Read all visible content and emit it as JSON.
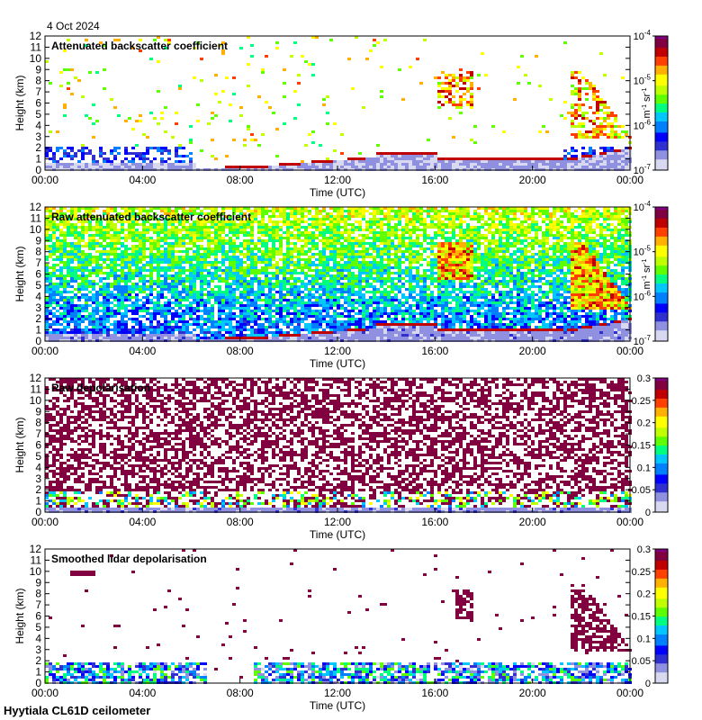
{
  "date_label": "4 Oct 2024",
  "footer_label": "Hyytiala CL61D ceilometer",
  "chart_data": [
    {
      "type": "heatmap",
      "title": "Attenuated backscatter coefficient",
      "xlabel": "Time (UTC)",
      "ylabel": "Height (km)",
      "xticks": [
        "00:00",
        "04:00",
        "08:00",
        "12:00",
        "16:00",
        "20:00",
        "00:00"
      ],
      "yticks": [
        "0",
        "1",
        "2",
        "3",
        "4",
        "5",
        "6",
        "7",
        "8",
        "9",
        "10",
        "11",
        "12"
      ],
      "ylim": [
        0,
        12
      ],
      "xlim_hours": [
        0,
        24
      ],
      "colorbar": {
        "scale": "log",
        "ticks": [
          "10-7",
          "10-6",
          "10-5",
          "10-4"
        ],
        "unit": "m-1 sr-1"
      },
      "pattern": "clean"
    },
    {
      "type": "heatmap",
      "title": "Raw attenuated backscatter coefficient",
      "xlabel": "Time (UTC)",
      "ylabel": "Height (km)",
      "xticks": [
        "00:00",
        "04:00",
        "08:00",
        "12:00",
        "16:00",
        "20:00",
        "00:00"
      ],
      "yticks": [
        "0",
        "1",
        "2",
        "3",
        "4",
        "5",
        "6",
        "7",
        "8",
        "9",
        "10",
        "11",
        "12"
      ],
      "ylim": [
        0,
        12
      ],
      "xlim_hours": [
        0,
        24
      ],
      "colorbar": {
        "scale": "log",
        "ticks": [
          "10-7",
          "10-6",
          "10-5",
          "10-4"
        ],
        "unit": "m-1 sr-1"
      },
      "pattern": "raw"
    },
    {
      "type": "heatmap",
      "title": "Raw depolarisation",
      "xlabel": "Time (UTC)",
      "ylabel": "Height (km)",
      "xticks": [
        "00:00",
        "04:00",
        "08:00",
        "12:00",
        "16:00",
        "20:00",
        "00:00"
      ],
      "yticks": [
        "0",
        "1",
        "2",
        "3",
        "4",
        "5",
        "6",
        "7",
        "8",
        "9",
        "10",
        "11",
        "12"
      ],
      "ylim": [
        0,
        12
      ],
      "xlim_hours": [
        0,
        24
      ],
      "colorbar": {
        "scale": "linear",
        "ticks": [
          "0",
          "0.05",
          "0.1",
          "0.15",
          "0.2",
          "0.25",
          "0.3"
        ],
        "range": [
          0,
          0.3
        ]
      },
      "pattern": "depol_raw"
    },
    {
      "type": "heatmap",
      "title": "Smoothed lidar depolarisation",
      "xlabel": "Time (UTC)",
      "ylabel": "Height (km)",
      "xticks": [
        "00:00",
        "04:00",
        "08:00",
        "12:00",
        "16:00",
        "20:00",
        "00:00"
      ],
      "yticks": [
        "0",
        "1",
        "2",
        "3",
        "4",
        "5",
        "6",
        "7",
        "8",
        "9",
        "10",
        "11",
        "12"
      ],
      "ylim": [
        0,
        12
      ],
      "xlim_hours": [
        0,
        24
      ],
      "colorbar": {
        "scale": "linear",
        "ticks": [
          "0",
          "0.05",
          "0.1",
          "0.15",
          "0.2",
          "0.25",
          "0.3"
        ],
        "range": [
          0,
          0.3
        ]
      },
      "pattern": "depol_smooth"
    }
  ]
}
